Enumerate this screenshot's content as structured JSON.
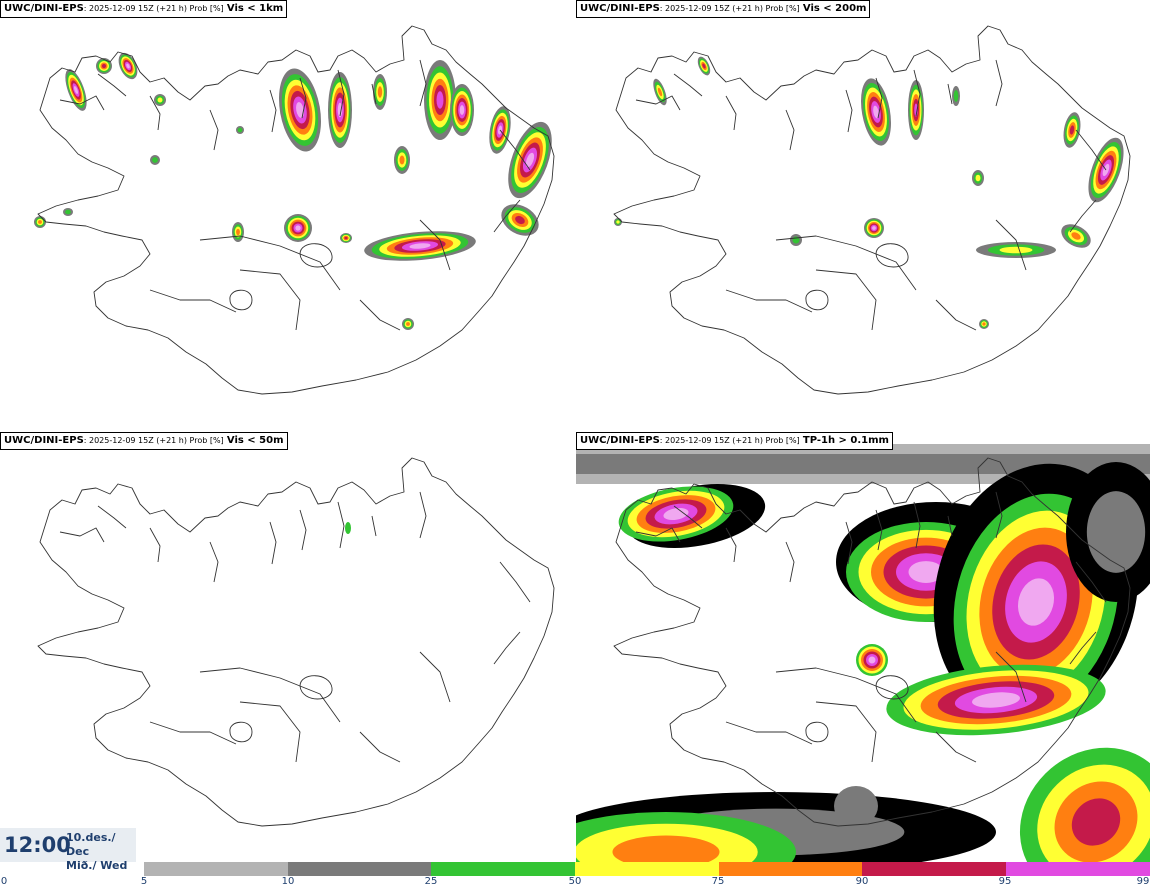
{
  "panels": [
    {
      "source": "UWC/DINI-EPS",
      "meta": ": 2025-12-09 15Z (+21 h) Prob [%]",
      "variable": "Vis < 1km"
    },
    {
      "source": "UWC/DINI-EPS",
      "meta": ": 2025-12-09 15Z (+21 h) Prob [%]",
      "variable": "Vis < 200m"
    },
    {
      "source": "UWC/DINI-EPS",
      "meta": ": 2025-12-09 15Z (+21 h) Prob [%]",
      "variable": "Vis < 50m"
    },
    {
      "source": "UWC/DINI-EPS",
      "meta": ": 2025-12-09 15Z (+21 h) Prob [%]",
      "variable": "TP-1h > 0.1mm"
    }
  ],
  "time": {
    "clock": "12:00",
    "date_line": "10.des./ Dec",
    "day_line": "Mið./ Wed"
  },
  "colorbar": {
    "ticks": [
      "0",
      "5",
      "10",
      "25",
      "50",
      "75",
      "90",
      "95",
      "99"
    ],
    "colors": [
      "#b3b3b3",
      "#7a7a7a",
      "#33c433",
      "#ffff33",
      "#ff7f11",
      "#c41a4a",
      "#e14ae1",
      "#f0a8f0"
    ]
  },
  "legend_colors": {
    "p10": "#b3b3b3",
    "p25": "#7a7a7a",
    "p50": "#33c433",
    "p75": "#ffff33",
    "p90": "#ff7f11",
    "p95": "#c41a4a",
    "p99": "#e14ae1",
    "p100": "#f0a8f0"
  }
}
